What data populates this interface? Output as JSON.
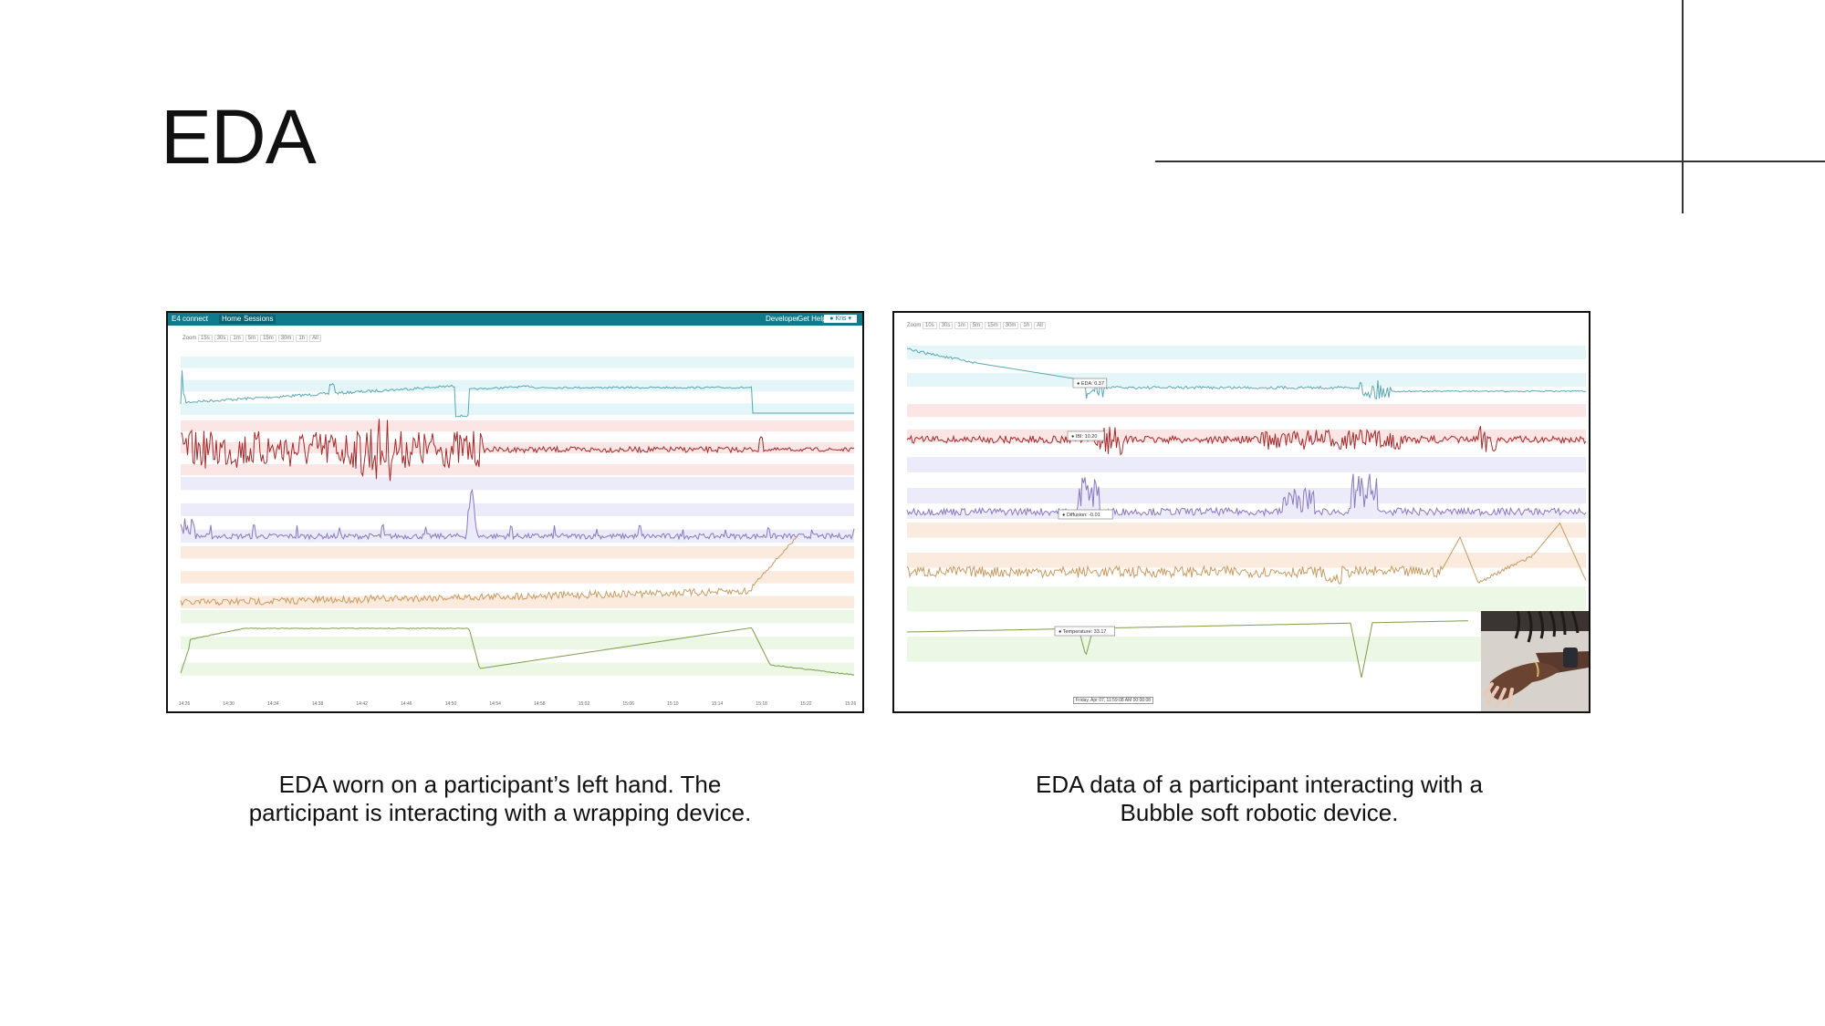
{
  "slide": {
    "title": "EDA",
    "captions": {
      "left": [
        "EDA worn on a participant’s left hand. The",
        "participant is interacting with a wrapping device."
      ],
      "right": [
        "EDA data of a participant interacting with a",
        "Bubble soft robotic device."
      ]
    }
  },
  "left_screenshot": {
    "app_name": "E4 connect",
    "nav_tabs": [
      "Home",
      "Sessions"
    ],
    "top_links": [
      "Developer",
      "Get Help"
    ],
    "user_label": "Kris",
    "zoom_label": "Zoom",
    "zoom_options": [
      "15s",
      "30s",
      "1m",
      "5m",
      "15m",
      "30m",
      "1h",
      "All"
    ],
    "time_labels": [
      "14:26",
      "14:30",
      "14:34",
      "14:38",
      "14:42",
      "14:46",
      "14:50",
      "14:54",
      "14:58",
      "15:02",
      "15:06",
      "15:10",
      "15:14",
      "15:18",
      "15:22",
      "15:26"
    ]
  },
  "right_screenshot": {
    "zoom_label": "Zoom",
    "zoom_options": [
      "10s",
      "30s",
      "1m",
      "5m",
      "15m",
      "30m",
      "1h",
      "All"
    ],
    "tooltips": [
      "EDA: 0.37",
      "IBI: 10.20",
      "Diffusion: -0.01",
      "Temperature: 33.17"
    ],
    "time_tooltip": "Friday, Apr 07, 11:59:08 AM 00:00:08"
  },
  "colors": {
    "eda": "#5aa7b4",
    "bvp": "#a32a2a",
    "acc": "#8878c0",
    "hr": "#c99a60",
    "temp": "#7c9e4a",
    "band_cyan": "#e4f6f8",
    "band_pink": "#fbe5e5",
    "band_lavender": "#ecebfa",
    "band_peach": "#fbeade",
    "band_green": "#ecf7e6",
    "app_header": "#0f7b8a"
  }
}
